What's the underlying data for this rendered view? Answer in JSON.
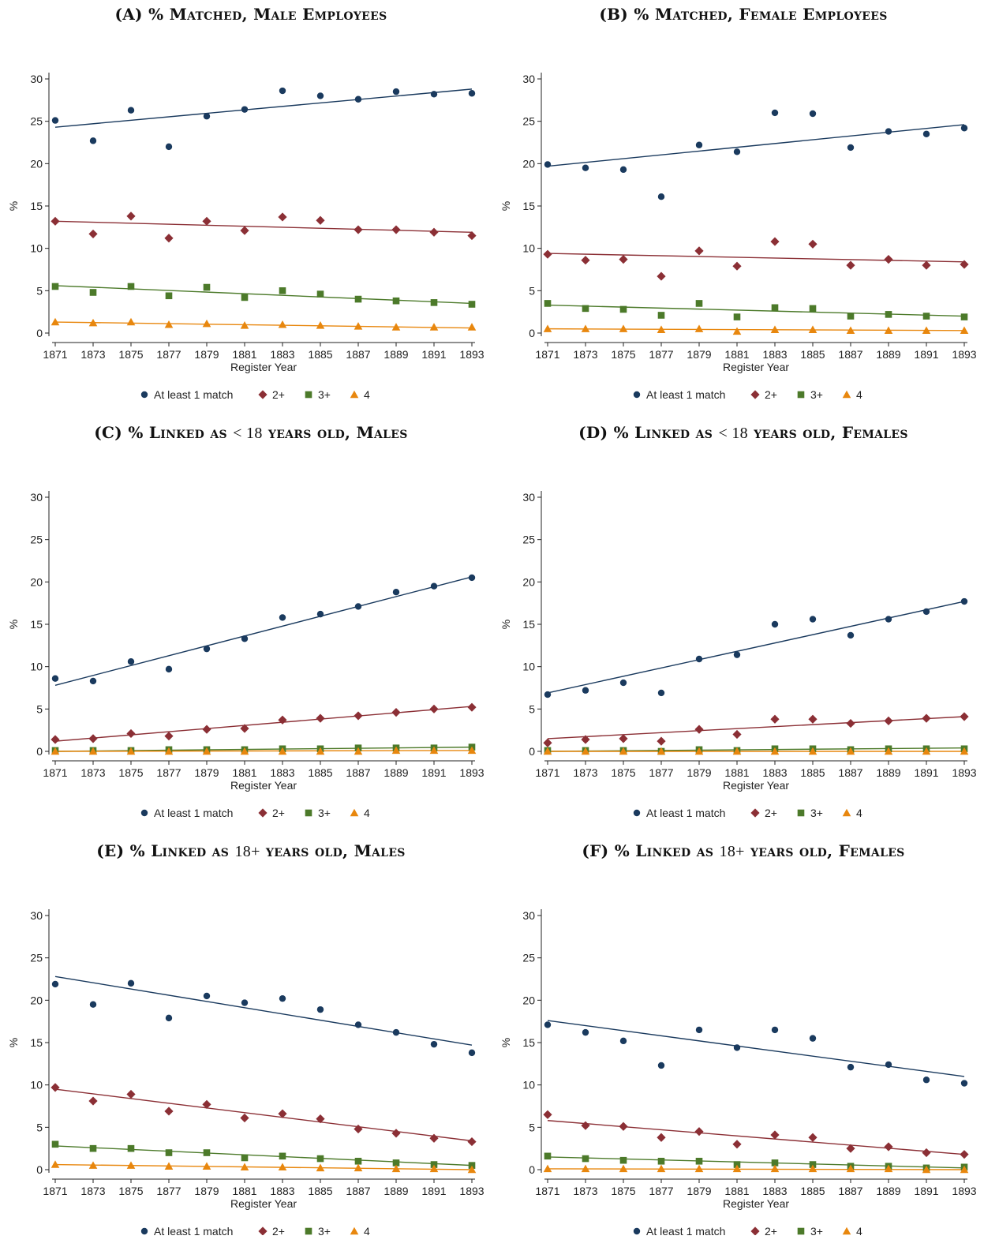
{
  "colors": {
    "at_least_1": "#1a3a5e",
    "two_plus": "#8b2f35",
    "three_plus": "#4c7a2a",
    "four": "#e8870e"
  },
  "legend": [
    "At least 1 match",
    "2+",
    "3+",
    "4"
  ],
  "chart_data": [
    {
      "type": "scatter",
      "label": "(A)",
      "title_pre": "% Matched, Male Employees",
      "title_math": "",
      "title_post": "",
      "xlabel": "Register Year",
      "ylabel": "%",
      "ylim": [
        0,
        30
      ],
      "yticks": [
        0,
        5,
        10,
        15,
        20,
        25,
        30
      ],
      "x": [
        1871,
        1873,
        1875,
        1877,
        1879,
        1881,
        1883,
        1885,
        1887,
        1889,
        1891,
        1893
      ],
      "fitted_lines": true,
      "legend_position": "bottom",
      "series": [
        {
          "name": "At least 1 match",
          "values": [
            25.1,
            22.7,
            26.3,
            22.0,
            25.6,
            26.4,
            28.6,
            28.0,
            27.6,
            28.5,
            28.2,
            28.3
          ],
          "fit": [
            24.3,
            28.8
          ]
        },
        {
          "name": "2+",
          "values": [
            13.2,
            11.7,
            13.8,
            11.2,
            13.2,
            12.1,
            13.7,
            13.3,
            12.2,
            12.2,
            11.9,
            11.5
          ],
          "fit": [
            13.2,
            11.9
          ]
        },
        {
          "name": "3+",
          "values": [
            5.5,
            4.8,
            5.5,
            4.4,
            5.4,
            4.2,
            5.0,
            4.6,
            4.0,
            3.8,
            3.6,
            3.4
          ],
          "fit": [
            5.6,
            3.5
          ]
        },
        {
          "name": "4",
          "values": [
            1.3,
            1.2,
            1.3,
            1.0,
            1.1,
            0.9,
            1.0,
            0.9,
            0.8,
            0.7,
            0.7,
            0.7
          ],
          "fit": [
            1.3,
            0.6
          ]
        }
      ]
    },
    {
      "type": "scatter",
      "label": "(B)",
      "title_pre": "% Matched, Female Employees",
      "title_math": "",
      "title_post": "",
      "xlabel": "Register Year",
      "ylabel": "%",
      "ylim": [
        0,
        30
      ],
      "yticks": [
        0,
        5,
        10,
        15,
        20,
        25,
        30
      ],
      "x": [
        1871,
        1873,
        1875,
        1877,
        1879,
        1881,
        1883,
        1885,
        1887,
        1889,
        1891,
        1893
      ],
      "fitted_lines": true,
      "legend_position": "bottom",
      "series": [
        {
          "name": "At least 1 match",
          "values": [
            19.9,
            19.5,
            19.3,
            16.1,
            22.2,
            21.4,
            26.0,
            25.9,
            21.9,
            23.8,
            23.5,
            24.2
          ],
          "fit": [
            19.7,
            24.6
          ]
        },
        {
          "name": "2+",
          "values": [
            9.3,
            8.6,
            8.7,
            6.7,
            9.7,
            7.9,
            10.8,
            10.5,
            8.0,
            8.7,
            8.0,
            8.1
          ],
          "fit": [
            9.4,
            8.4
          ]
        },
        {
          "name": "3+",
          "values": [
            3.5,
            2.9,
            2.8,
            2.1,
            3.5,
            1.9,
            3.0,
            2.9,
            2.0,
            2.2,
            2.0,
            1.9
          ],
          "fit": [
            3.3,
            2.0
          ]
        },
        {
          "name": "4",
          "values": [
            0.5,
            0.5,
            0.5,
            0.4,
            0.5,
            0.2,
            0.4,
            0.4,
            0.3,
            0.3,
            0.3,
            0.3
          ],
          "fit": [
            0.5,
            0.3
          ]
        }
      ]
    },
    {
      "type": "scatter",
      "label": "(C)",
      "title_pre": "% Linked as ",
      "title_math": "< 18",
      "title_post": " years old, Males",
      "xlabel": "Register Year",
      "ylabel": "%",
      "ylim": [
        0,
        30
      ],
      "yticks": [
        0,
        5,
        10,
        15,
        20,
        25,
        30
      ],
      "x": [
        1871,
        1873,
        1875,
        1877,
        1879,
        1881,
        1883,
        1885,
        1887,
        1889,
        1891,
        1893
      ],
      "fitted_lines": true,
      "legend_position": "bottom",
      "series": [
        {
          "name": "At least 1 match",
          "values": [
            8.6,
            8.3,
            10.6,
            9.7,
            12.1,
            13.3,
            15.8,
            16.2,
            17.1,
            18.8,
            19.5,
            20.5
          ],
          "fit": [
            7.8,
            20.6
          ]
        },
        {
          "name": "2+",
          "values": [
            1.4,
            1.5,
            2.1,
            1.8,
            2.6,
            2.7,
            3.7,
            3.9,
            4.2,
            4.6,
            5.0,
            5.2
          ],
          "fit": [
            1.2,
            5.3
          ]
        },
        {
          "name": "3+",
          "values": [
            0.1,
            0.1,
            0.1,
            0.2,
            0.2,
            0.2,
            0.3,
            0.3,
            0.4,
            0.4,
            0.4,
            0.5
          ],
          "fit": [
            0.0,
            0.5
          ]
        },
        {
          "name": "4",
          "values": [
            0.0,
            0.0,
            0.0,
            0.0,
            0.0,
            0.0,
            0.0,
            0.0,
            0.0,
            0.1,
            0.1,
            0.1
          ],
          "fit": [
            0.0,
            0.1
          ]
        }
      ]
    },
    {
      "type": "scatter",
      "label": "(D)",
      "title_pre": "% Linked as ",
      "title_math": "< 18",
      "title_post": " years old, Females",
      "xlabel": "Register Year",
      "ylabel": "%",
      "ylim": [
        0,
        30
      ],
      "yticks": [
        0,
        5,
        10,
        15,
        20,
        25,
        30
      ],
      "x": [
        1871,
        1873,
        1875,
        1877,
        1879,
        1881,
        1883,
        1885,
        1887,
        1889,
        1891,
        1893
      ],
      "fitted_lines": true,
      "legend_position": "bottom",
      "series": [
        {
          "name": "At least 1 match",
          "values": [
            6.7,
            7.2,
            8.1,
            6.9,
            10.9,
            11.4,
            15.0,
            15.6,
            13.7,
            15.6,
            16.5,
            17.7
          ],
          "fit": [
            6.9,
            17.7
          ]
        },
        {
          "name": "2+",
          "values": [
            1.0,
            1.4,
            1.5,
            1.2,
            2.6,
            2.0,
            3.8,
            3.8,
            3.3,
            3.6,
            3.9,
            4.1
          ],
          "fit": [
            1.5,
            4.1
          ]
        },
        {
          "name": "3+",
          "values": [
            0.1,
            0.1,
            0.1,
            0.0,
            0.2,
            0.1,
            0.3,
            0.3,
            0.2,
            0.3,
            0.3,
            0.3
          ],
          "fit": [
            0.0,
            0.4
          ]
        },
        {
          "name": "4",
          "values": [
            0.0,
            0.0,
            0.0,
            0.0,
            0.0,
            0.0,
            0.0,
            0.0,
            0.0,
            0.0,
            0.0,
            0.0
          ],
          "fit": [
            0.0,
            0.0
          ]
        }
      ]
    },
    {
      "type": "scatter",
      "label": "(E)",
      "title_pre": "% Linked as ",
      "title_math": "18+",
      "title_post": " years old, Males",
      "xlabel": "Register Year",
      "ylabel": "%",
      "ylim": [
        0,
        30
      ],
      "yticks": [
        0,
        5,
        10,
        15,
        20,
        25,
        30
      ],
      "x": [
        1871,
        1873,
        1875,
        1877,
        1879,
        1881,
        1883,
        1885,
        1887,
        1889,
        1891,
        1893
      ],
      "fitted_lines": true,
      "legend_position": "bottom",
      "series": [
        {
          "name": "At least 1 match",
          "values": [
            21.9,
            19.5,
            22.0,
            17.9,
            20.5,
            19.7,
            20.2,
            18.9,
            17.1,
            16.2,
            14.8,
            13.8
          ],
          "fit": [
            22.8,
            14.7
          ]
        },
        {
          "name": "2+",
          "values": [
            9.7,
            8.1,
            8.9,
            6.9,
            7.7,
            6.1,
            6.6,
            6.0,
            4.8,
            4.3,
            3.7,
            3.3
          ],
          "fit": [
            9.5,
            3.4
          ]
        },
        {
          "name": "3+",
          "values": [
            3.0,
            2.5,
            2.5,
            2.0,
            2.0,
            1.4,
            1.6,
            1.3,
            1.0,
            0.8,
            0.6,
            0.5
          ],
          "fit": [
            2.8,
            0.5
          ]
        },
        {
          "name": "4",
          "values": [
            0.6,
            0.5,
            0.5,
            0.4,
            0.4,
            0.3,
            0.3,
            0.2,
            0.2,
            0.1,
            0.1,
            0.0
          ],
          "fit": [
            0.6,
            0.0
          ]
        }
      ]
    },
    {
      "type": "scatter",
      "label": "(F)",
      "title_pre": "% Linked as ",
      "title_math": "18+",
      "title_post": " years old, Females",
      "xlabel": "Register Year",
      "ylabel": "%",
      "ylim": [
        0,
        30
      ],
      "yticks": [
        0,
        5,
        10,
        15,
        20,
        25,
        30
      ],
      "x": [
        1871,
        1873,
        1875,
        1877,
        1879,
        1881,
        1883,
        1885,
        1887,
        1889,
        1891,
        1893
      ],
      "fitted_lines": true,
      "legend_position": "bottom",
      "series": [
        {
          "name": "At least 1 match",
          "values": [
            17.1,
            16.2,
            15.2,
            12.3,
            16.5,
            14.4,
            16.5,
            15.5,
            12.1,
            12.4,
            10.6,
            10.2
          ],
          "fit": [
            17.6,
            11.0
          ]
        },
        {
          "name": "2+",
          "values": [
            6.5,
            5.2,
            5.1,
            3.8,
            4.5,
            3.0,
            4.1,
            3.8,
            2.5,
            2.7,
            2.0,
            1.8
          ],
          "fit": [
            5.8,
            1.8
          ]
        },
        {
          "name": "3+",
          "values": [
            1.6,
            1.3,
            1.1,
            1.0,
            1.0,
            0.6,
            0.8,
            0.6,
            0.4,
            0.4,
            0.2,
            0.3
          ],
          "fit": [
            1.5,
            0.2
          ]
        },
        {
          "name": "4",
          "values": [
            0.1,
            0.1,
            0.1,
            0.1,
            0.1,
            0.1,
            0.1,
            0.1,
            0.1,
            0.1,
            0.0,
            0.0
          ],
          "fit": [
            0.1,
            0.0
          ]
        }
      ]
    }
  ]
}
